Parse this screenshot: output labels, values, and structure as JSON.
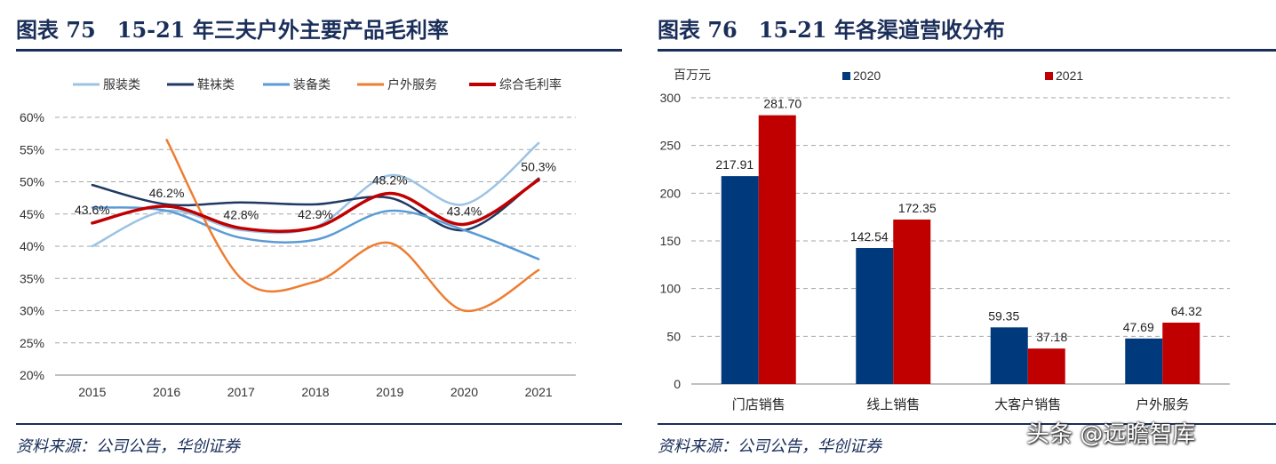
{
  "left_panel": {
    "figure_title": "图表 75　15-21 年三夫户外主要产品毛利率",
    "source": "资料来源：公司公告，华创证券"
  },
  "right_panel": {
    "figure_title": "图表 76　15-21 年各渠道营收分布",
    "source": "资料来源：公司公告，华创证券"
  },
  "watermark": "头条 @远瞻智库",
  "colors": {
    "title_navy": "#1a2e5a",
    "服装类": "#9cc3e4",
    "鞋袜类": "#1f3864",
    "装备类": "#5b9bd5",
    "户外服务": "#ed7d31",
    "综合毛利率": "#c00000",
    "bar_2020": "#003a7d",
    "bar_2021": "#c00000"
  },
  "chart_data": [
    {
      "type": "line",
      "title": "",
      "x": [
        "2015",
        "2016",
        "2017",
        "2018",
        "2019",
        "2020",
        "2021"
      ],
      "ylim": [
        20,
        60
      ],
      "yticks": [
        "20%",
        "25%",
        "30%",
        "35%",
        "40%",
        "45%",
        "50%",
        "55%",
        "60%"
      ],
      "grid": true,
      "legend_position": "top",
      "series": [
        {
          "name": "服装类",
          "values": [
            40.0,
            45.5,
            42.5,
            43.0,
            51.0,
            46.5,
            56.0
          ]
        },
        {
          "name": "鞋袜类",
          "values": [
            49.5,
            46.5,
            46.8,
            46.5,
            47.5,
            42.5,
            50.5
          ]
        },
        {
          "name": "装备类",
          "values": [
            46.0,
            45.5,
            41.3,
            41.0,
            45.5,
            42.5,
            38.0
          ]
        },
        {
          "name": "户外服务",
          "values": [
            null,
            56.5,
            35.0,
            34.5,
            40.5,
            30.0,
            36.3
          ]
        },
        {
          "name": "综合毛利率",
          "values": [
            43.6,
            46.2,
            42.8,
            42.9,
            48.2,
            43.4,
            50.3
          ],
          "labels": [
            "43.6%",
            "46.2%",
            "42.8%",
            "42.9%",
            "48.2%",
            "43.4%",
            "50.3%"
          ]
        }
      ]
    },
    {
      "type": "bar",
      "title": "",
      "ylabel": "百万元",
      "categories": [
        "门店销售",
        "线上销售",
        "大客户销售",
        "户外服务"
      ],
      "ylim": [
        0,
        300
      ],
      "yticks": [
        "0",
        "50",
        "100",
        "150",
        "200",
        "250",
        "300"
      ],
      "grid": true,
      "legend_position": "top",
      "series": [
        {
          "name": "2020",
          "values": [
            217.91,
            142.54,
            59.35,
            47.69
          ],
          "labels": [
            "217.91",
            "142.54",
            "59.35",
            "47.69"
          ]
        },
        {
          "name": "2021",
          "values": [
            281.7,
            172.35,
            37.18,
            64.32
          ],
          "labels": [
            "281.70",
            "172.35",
            "37.18",
            "64.32"
          ]
        }
      ]
    }
  ]
}
